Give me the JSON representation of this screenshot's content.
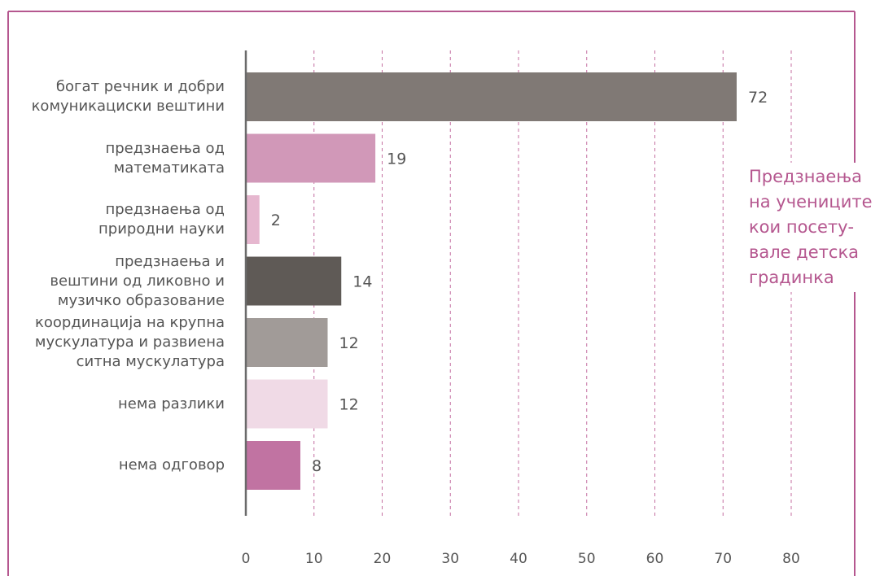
{
  "colors": {
    "frame": "#b5578f",
    "grid": "#c46fa0",
    "axis": "#6a6a6a",
    "text": "#555555",
    "side_title": "#b5578f"
  },
  "side_title": "Предзнаења\nна учениците\nкои посету-\nвале детска\nградинка",
  "chart_data": {
    "type": "bar",
    "orientation": "horizontal",
    "categories": [
      "богат речник и добри\nкомуникациски вештини",
      "предзнаења од\nматематиката",
      "предзнаења од\nприродни науки",
      "предзнаења и\nвештини од ликовно и\nмузичко образование",
      "координација на крупна\nмускулатура и развиена\nситна мускулатура",
      "нема разлики",
      "нема одговор"
    ],
    "values": [
      72,
      19,
      2,
      14,
      12,
      12,
      8
    ],
    "value_labels": [
      "72",
      "19",
      "2",
      "14",
      "12",
      "12",
      "8"
    ],
    "bar_colors": [
      "#807975",
      "#d198b8",
      "#e6b7cf",
      "#5f5a56",
      "#a19b98",
      "#f0dae6",
      "#c173a2"
    ],
    "xlim": [
      0,
      80
    ],
    "x_ticks": [
      0,
      10,
      20,
      30,
      40,
      50,
      60,
      70,
      80
    ],
    "x_tick_labels": [
      "0",
      "10",
      "20",
      "30",
      "40",
      "50",
      "60",
      "70",
      "80"
    ],
    "grid": "vertical dashed",
    "legend": "none"
  }
}
